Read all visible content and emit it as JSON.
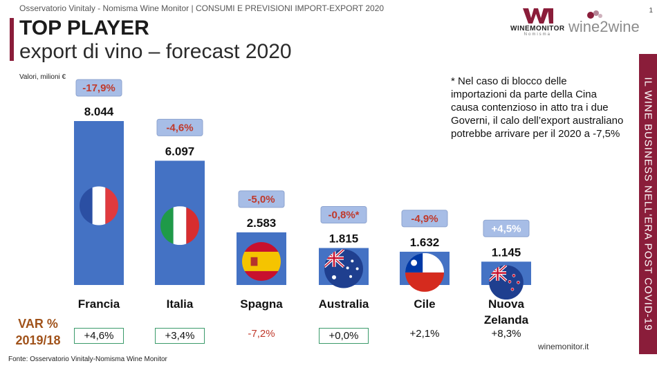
{
  "header": {
    "source_line": "Osservatorio Vinitaly - Nomisma Wine Monitor | CONSUMI E PREVISIONI IMPORT-EXPORT 2020",
    "page_number": "1"
  },
  "title": "TOP PLAYER",
  "subtitle": "export di vino – forecast 2020",
  "values_note": "Valori, milioni €",
  "footnote": "* Nel caso di blocco delle importazioni da parte della Cina causa contenzioso in atto tra i due Governi, il calo dell’export australiano potrebbe arrivare per il 2020 a -7,5%",
  "side_banner": "IL WINE BUSINESS NELL'ERA POST COVID-19",
  "logos": {
    "winemonitor_main": "WINEMONITOR",
    "winemonitor_sub": "Nomisma",
    "wine2wine": "wine2wine"
  },
  "var_label_line1": "VAR %",
  "var_label_line2": "2019/18",
  "source": "Fonte: Osservatorio Vinitaly-Nomisma Wine Monitor",
  "website": "winemonitor.it",
  "colors": {
    "bar": "#4472c4",
    "accent": "#8a1d3a",
    "forecast_box": "#a7bde6",
    "negative": "#c0392b",
    "positive_box_text": "#ffffff",
    "var_negative": "#c0392b",
    "var_box_border": "#3a9a6a"
  },
  "chart_data": {
    "type": "bar",
    "categories": [
      "Francia",
      "Italia",
      "Spagna",
      "Australia",
      "Cile",
      "Nuova Zelanda"
    ],
    "values": [
      8044,
      6097,
      2583,
      1815,
      1632,
      1145
    ],
    "value_labels": [
      "8.044",
      "6.097",
      "2.583",
      "1.815",
      "1.632",
      "1.145"
    ],
    "forecast_change": [
      "-17,9%",
      "-4,6%",
      "-5,0%",
      "-0,8%*",
      "-4,9%",
      "+4,5%"
    ],
    "var_2019_18": [
      "+4,6%",
      "+3,4%",
      "-7,2%",
      "+0,0%",
      "+2,1%",
      "+8,3%"
    ],
    "var_boxed": [
      true,
      true,
      false,
      true,
      false,
      false
    ],
    "flag_icons": [
      "flag-france-icon",
      "flag-italy-icon",
      "flag-spain-icon",
      "flag-australia-icon",
      "flag-chile-icon",
      "flag-new-zealand-icon"
    ],
    "ylim": [
      0,
      8044
    ],
    "title": "",
    "xlabel": "",
    "ylabel": ""
  }
}
